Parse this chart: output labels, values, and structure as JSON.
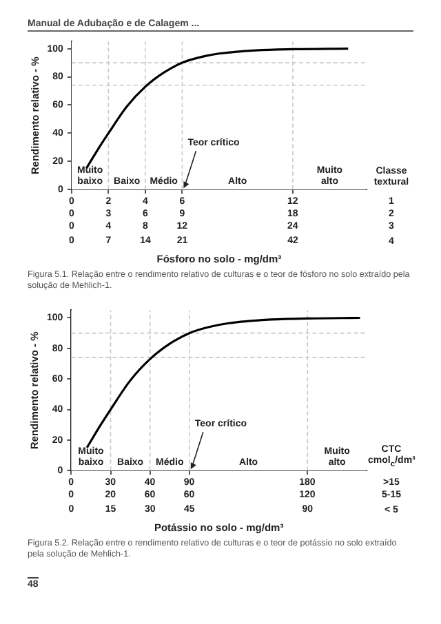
{
  "chart_data": [
    {
      "type": "line",
      "title": "Manual de Adubação e de Calagem ...",
      "xlabel": "Fósforo no solo - mg/dm³",
      "ylabel": "Rendimento relativo - %",
      "x": [
        2.8,
        5.25,
        7,
        10.5,
        14,
        17.5,
        21,
        24.5,
        28,
        35,
        42,
        52.5
      ],
      "series": [
        {
          "color": "#000000",
          "values": [
            15,
            30,
            40,
            59,
            73,
            83,
            90,
            94,
            96.5,
            98.8,
            99.6,
            100
          ]
        }
      ],
      "xlim": [
        0,
        56
      ],
      "xticks": [
        0,
        7,
        14,
        21,
        42
      ],
      "ylim": [
        0,
        105
      ],
      "yticks": [
        0,
        20,
        40,
        60,
        80,
        100
      ],
      "marker": "none",
      "ref_lines": [
        {
          "axis": "x",
          "value": 7,
          "color": "#c8c8c8",
          "line_style": "dashed"
        },
        {
          "axis": "x",
          "value": 14,
          "color": "#c8c8c8",
          "line_style": "dashed"
        },
        {
          "axis": "x",
          "value": 21,
          "color": "#c8c8c8",
          "line_style": "dashed",
          "label": "Teor crítico"
        },
        {
          "axis": "x",
          "value": 42,
          "color": "#c8c8c8",
          "line_style": "dashed"
        },
        {
          "axis": "y",
          "value": 90,
          "color": "#c8c8c8",
          "line_style": "dashed"
        },
        {
          "axis": "y",
          "value": 74,
          "color": "#c8c8c8",
          "line_style": "dashed"
        }
      ],
      "bands": [
        {
          "axis": "x",
          "from": 0,
          "to": 7,
          "label": "Muito\nbaixo",
          "color": "#ffffff"
        },
        {
          "axis": "x",
          "from": 7,
          "to": 14,
          "label": "Baixo",
          "color": "#ffffff"
        },
        {
          "axis": "x",
          "from": 14,
          "to": 21,
          "label": "Médio",
          "color": "#ffffff"
        },
        {
          "axis": "x",
          "from": 21,
          "to": 42,
          "label": "Alto",
          "color": "#ffffff"
        },
        {
          "axis": "x",
          "from": 42,
          "to": 56,
          "label": "Muito\nalto",
          "color": "#ffffff"
        }
      ],
      "annotations": [
        "Classe textural",
        "4",
        "0 2 4 6 12 1",
        "0 3 6 9 18 2",
        "0 4 8 12 24 3",
        "Figura 5.1. Relação entre o rendimento relativo de culturas e o teor de fósforo no solo extraído pela solução de Mehlich-1."
      ]
    },
    {
      "type": "line",
      "xlabel": "Potássio no solo - mg/dm³",
      "ylabel": "Rendimento relativo - %",
      "x": [
        6,
        11.25,
        15,
        22.5,
        30,
        37.5,
        45,
        52.5,
        60,
        75,
        90,
        110
      ],
      "series": [
        {
          "color": "#000000",
          "values": [
            15,
            30,
            40,
            59,
            73,
            83,
            90,
            94,
            96.5,
            98.8,
            99.6,
            100
          ]
        }
      ],
      "xlim": [
        0,
        112.5
      ],
      "xticks": [
        0,
        15,
        30,
        45,
        90
      ],
      "ylim": [
        0,
        105
      ],
      "yticks": [
        0,
        20,
        40,
        60,
        80,
        100
      ],
      "marker": "none",
      "ref_lines": [
        {
          "axis": "x",
          "value": 15,
          "color": "#c8c8c8",
          "line_style": "dashed"
        },
        {
          "axis": "x",
          "value": 30,
          "color": "#c8c8c8",
          "line_style": "dashed"
        },
        {
          "axis": "x",
          "value": 45,
          "color": "#c8c8c8",
          "line_style": "dashed",
          "label": "Teor crítico"
        },
        {
          "axis": "x",
          "value": 90,
          "color": "#c8c8c8",
          "line_style": "dashed"
        },
        {
          "axis": "y",
          "value": 90,
          "color": "#c8c8c8",
          "line_style": "dashed"
        },
        {
          "axis": "y",
          "value": 74,
          "color": "#c8c8c8",
          "line_style": "dashed"
        }
      ],
      "bands": [
        {
          "axis": "x",
          "from": 0,
          "to": 15,
          "label": "Muito\nbaixo",
          "color": "#ffffff"
        },
        {
          "axis": "x",
          "from": 15,
          "to": 30,
          "label": "Baixo",
          "color": "#ffffff"
        },
        {
          "axis": "x",
          "from": 30,
          "to": 45,
          "label": "Médio",
          "color": "#ffffff"
        },
        {
          "axis": "x",
          "from": 45,
          "to": 90,
          "label": "Alto",
          "color": "#ffffff"
        },
        {
          "axis": "x",
          "from": 90,
          "to": 112.5,
          "label": "Muito\nalto",
          "color": "#ffffff"
        }
      ],
      "annotations": [
        "CTC cmol$_{c}$/dm³",
        "< 5",
        "0 30 40 90 180 >15",
        "0 20 60 60 120 5-15",
        "Figura 5.2. Relação entre o rendimento relativo de culturas e o teor de potássio no solo extraído pela solução de Mehlich-1.",
        "48"
      ]
    }
  ]
}
